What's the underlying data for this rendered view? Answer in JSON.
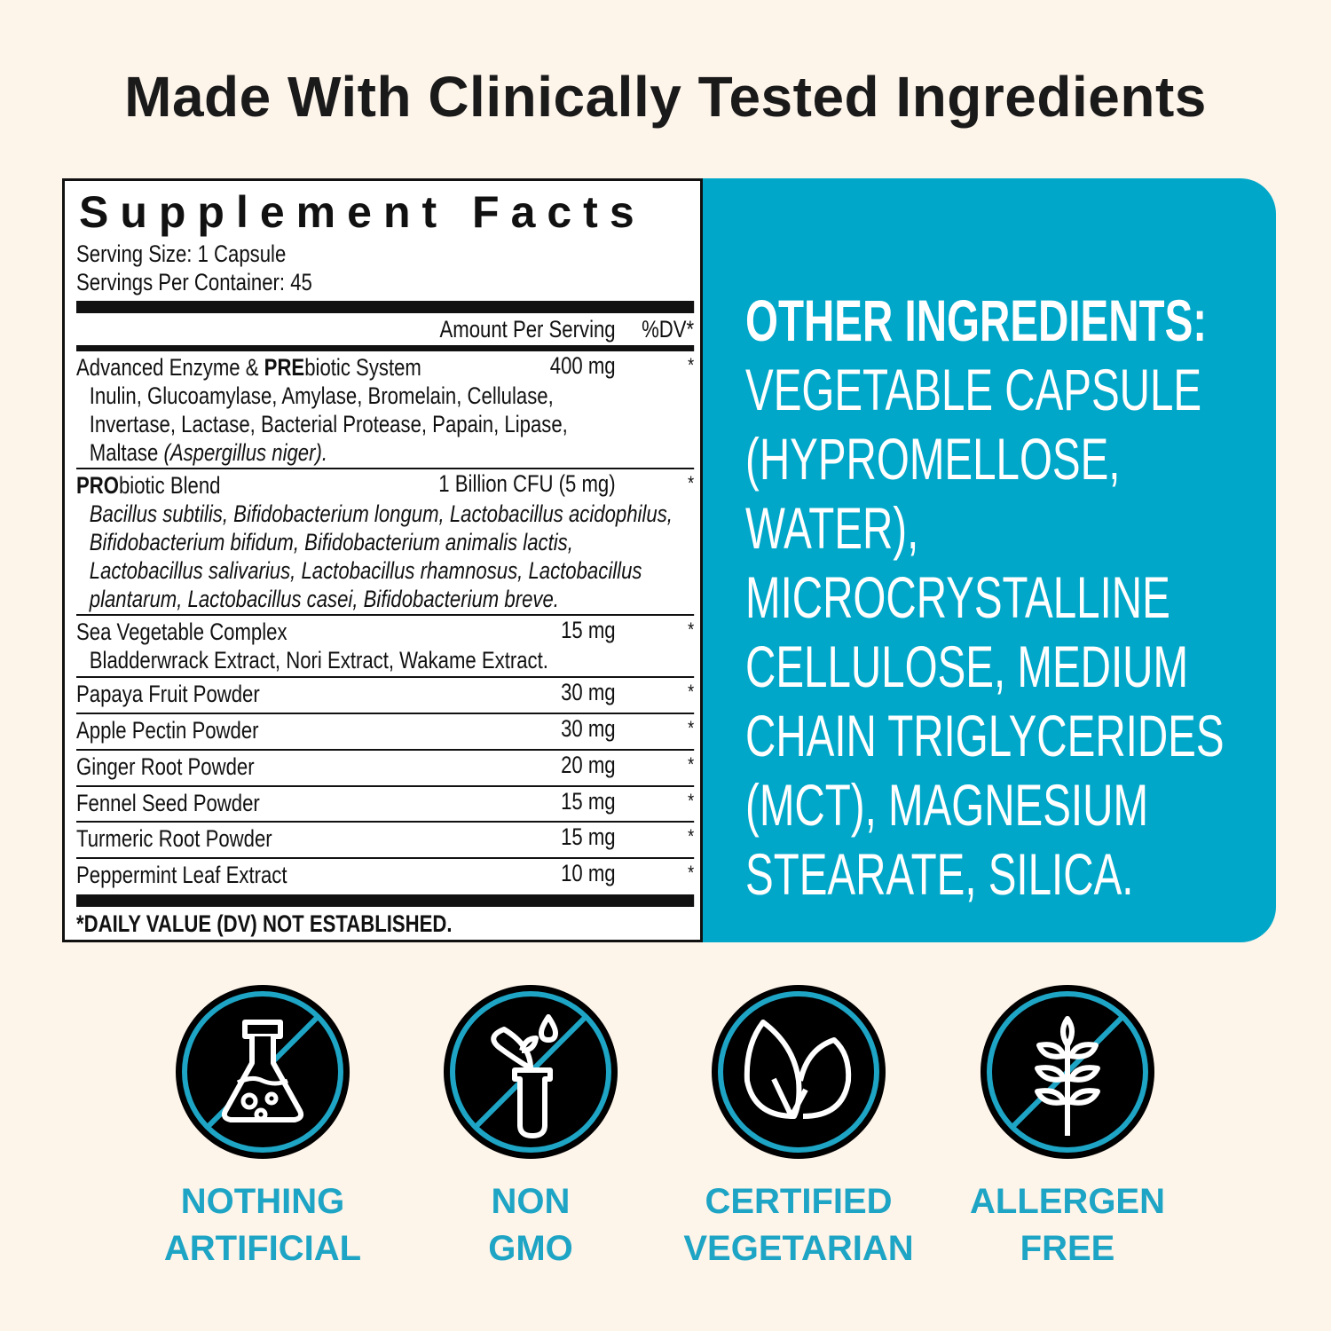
{
  "title": "Made With Clinically Tested Ingredients",
  "facts": {
    "title": "Supplement Facts",
    "serving_size": "Serving Size: 1 Capsule",
    "servings_per_container": "Servings Per Container: 45",
    "col_amount": "Amount Per Serving",
    "col_dv": "%DV*",
    "rows": [
      {
        "name_bold": "",
        "name_pre": "Advanced Enzyme & ",
        "name_bold2": "PRE",
        "name_post": "biotic System",
        "amount": "400 mg",
        "dv": "*",
        "sub": "Inulin, Glucoamylase, Amylase, Bromelain, Cellulase, Invertase, Lactase, Bacterial Protease, Papain, Lipase, Maltase",
        "sub_italic": "(Aspergillus niger)."
      },
      {
        "name_bold2": "PRO",
        "name_post": "biotic Blend",
        "amount": "1 Billion CFU (5 mg)",
        "dv": "*",
        "sub_italic": "Bacillus subtilis, Bifidobacterium longum, Lactobacillus acidophilus, Bifidobacterium bifidum, Bifidobacterium animalis lactis, Lactobacillus salivarius, Lactobacillus rhamnosus, Lactobacillus plantarum, Lactobacillus casei, Bifidobacterium breve."
      },
      {
        "name": "Sea Vegetable Complex",
        "amount": "15 mg",
        "dv": "*",
        "sub": "Bladderwrack Extract, Nori Extract, Wakame Extract."
      },
      {
        "name": "Papaya Fruit Powder",
        "amount": "30 mg",
        "dv": "*"
      },
      {
        "name": "Apple Pectin Powder",
        "amount": "30 mg",
        "dv": "*"
      },
      {
        "name": "Ginger Root Powder",
        "amount": "20 mg",
        "dv": "*"
      },
      {
        "name": "Fennel Seed Powder",
        "amount": "15 mg",
        "dv": "*"
      },
      {
        "name": "Turmeric Root Powder",
        "amount": "15 mg",
        "dv": "*"
      },
      {
        "name": "Peppermint Leaf Extract",
        "amount": "10 mg",
        "dv": "*"
      }
    ],
    "footnote": "*DAILY VALUE (DV) NOT ESTABLISHED."
  },
  "other_ingredients": {
    "heading": "OTHER INGREDIENTS:",
    "lines": [
      "VEGETABLE CAPSULE",
      "(HYPROMELLOSE, WATER),",
      "MICROCRYSTALLINE",
      "CELLULOSE, MEDIUM",
      "CHAIN TRIGLYCERIDES",
      "(MCT), MAGNESIUM",
      "STEARATE, SILICA."
    ]
  },
  "badges": [
    {
      "icon": "flask-icon",
      "line1": "NOTHING",
      "line2": "ARTIFICIAL"
    },
    {
      "icon": "plant-test-tube-icon",
      "line1": "NON",
      "line2": "GMO"
    },
    {
      "icon": "leaves-icon",
      "line1": "CERTIFIED",
      "line2": "VEGETARIAN"
    },
    {
      "icon": "wheat-icon",
      "line1": "ALLERGEN",
      "line2": "FREE"
    }
  ],
  "colors": {
    "background": "#fdf4ea",
    "accent": "#00a7c9",
    "label": "#1ea4c4",
    "icon_bg": "#000000"
  }
}
